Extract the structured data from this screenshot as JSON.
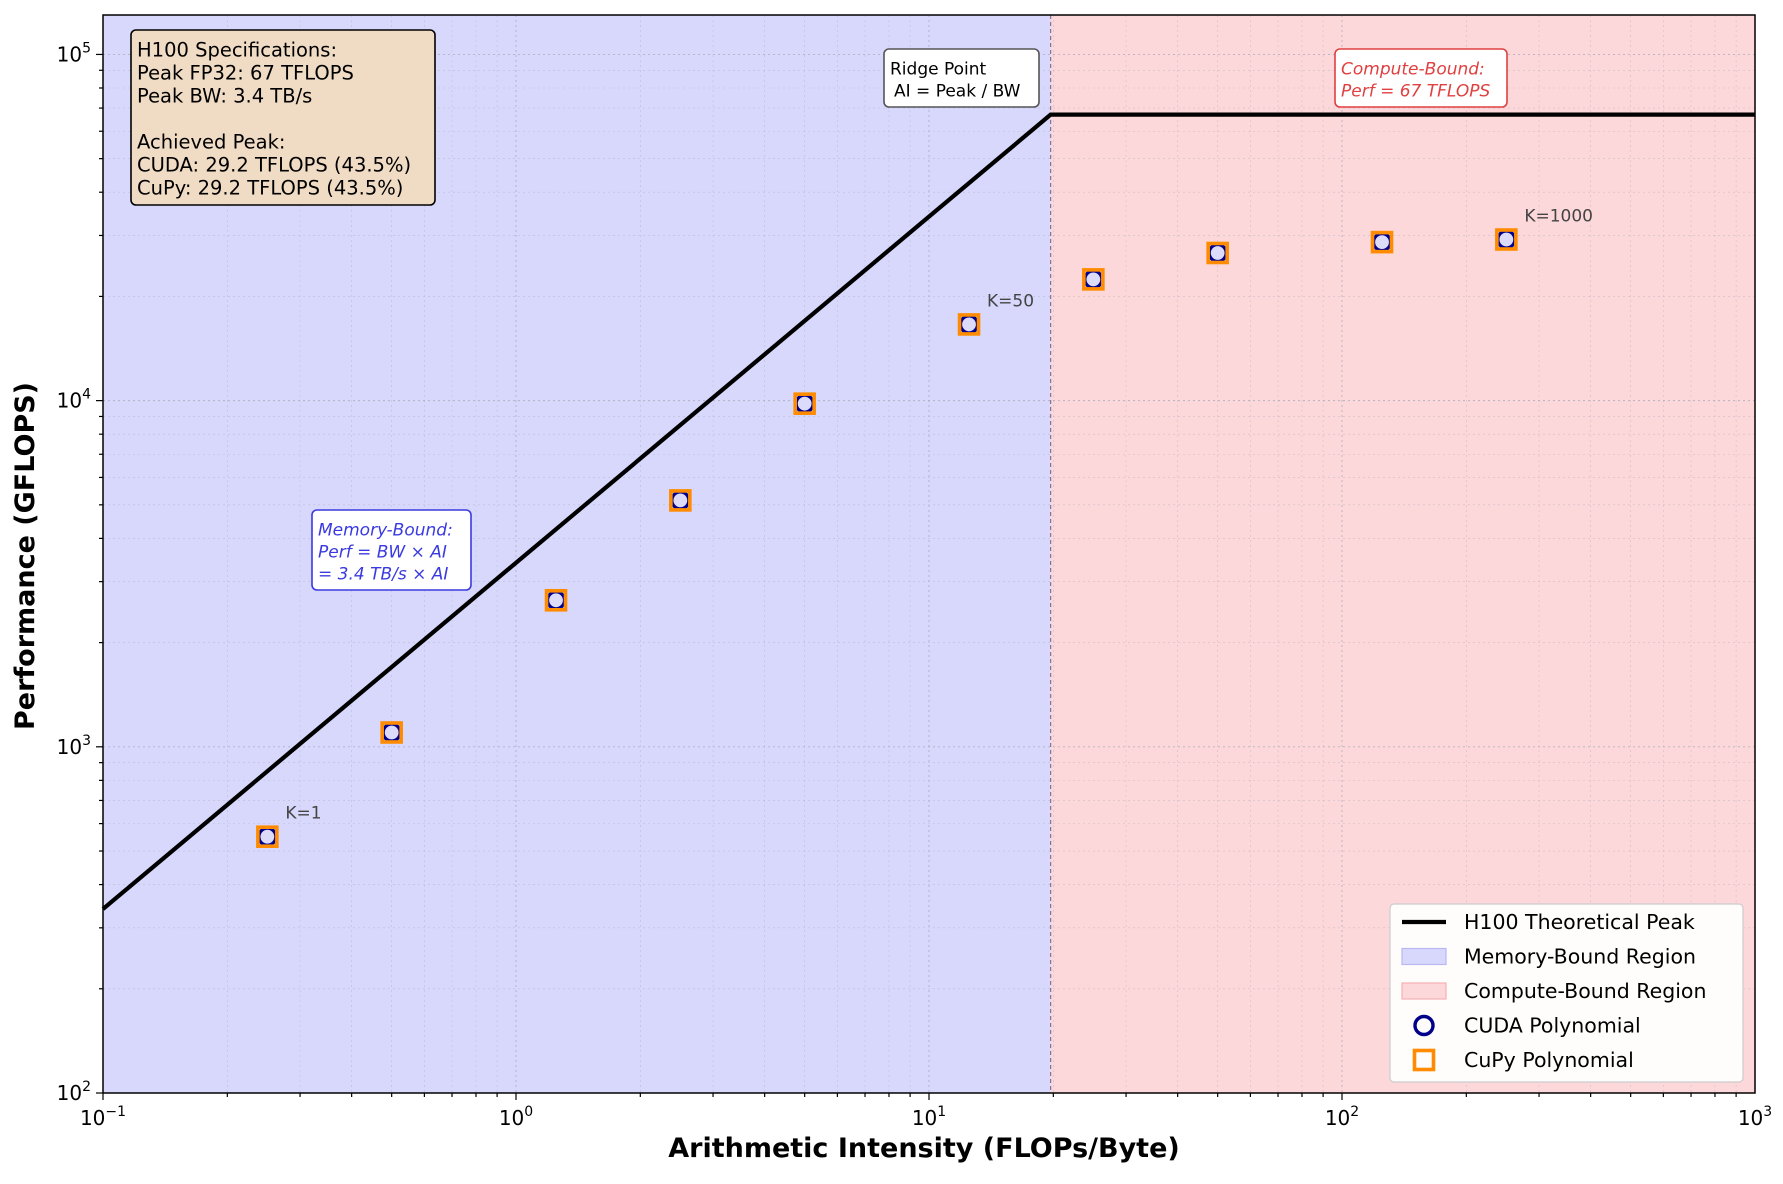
{
  "chart_data": {
    "type": "scatter",
    "xlabel": "Arithmetic Intensity (FLOPs/Byte)",
    "ylabel": "Performance (GFLOPS)",
    "xscale": "log",
    "yscale": "log",
    "xlim": [
      0.1,
      1000
    ],
    "ylim": [
      100,
      130000
    ],
    "x_ticks": [
      {
        "value": 0.1,
        "base": "10",
        "exp": "−1"
      },
      {
        "value": 1,
        "base": "10",
        "exp": "0"
      },
      {
        "value": 10,
        "base": "10",
        "exp": "1"
      },
      {
        "value": 100,
        "base": "10",
        "exp": "2"
      },
      {
        "value": 1000,
        "base": "10",
        "exp": "3"
      }
    ],
    "y_ticks": [
      {
        "value": 100,
        "base": "10",
        "exp": "2"
      },
      {
        "value": 1000,
        "base": "10",
        "exp": "3"
      },
      {
        "value": 10000,
        "base": "10",
        "exp": "4"
      },
      {
        "value": 100000,
        "base": "10",
        "exp": "5"
      }
    ],
    "grid": true,
    "ridge_point_ai": 19.7,
    "peak_gflops": 67000,
    "bandwidth_tb_s": 3.4,
    "regions": [
      {
        "name": "Memory-Bound Region",
        "x_range": [
          0.1,
          19.7
        ],
        "color": "#d8d8fd"
      },
      {
        "name": "Compute-Bound Region",
        "x_range": [
          19.7,
          1000
        ],
        "color": "#fdd8da"
      }
    ],
    "roofline": {
      "name": "H100 Theoretical Peak",
      "color": "#000000",
      "points": [
        [
          0.1,
          340
        ],
        [
          19.7,
          67000
        ],
        [
          1000,
          67000
        ]
      ]
    },
    "series": [
      {
        "name": "CUDA Polynomial",
        "marker": "circle",
        "color": "#00008b",
        "points": [
          [
            0.25,
            550
          ],
          [
            0.5,
            1100
          ],
          [
            1.25,
            2650
          ],
          [
            2.5,
            5150
          ],
          [
            5,
            9800
          ],
          [
            12.5,
            16600
          ],
          [
            25,
            22400
          ],
          [
            50,
            26700
          ],
          [
            125,
            28700
          ],
          [
            250,
            29200
          ]
        ]
      },
      {
        "name": "CuPy Polynomial",
        "marker": "square",
        "color": "#ff8c00",
        "points": [
          [
            0.25,
            550
          ],
          [
            0.5,
            1100
          ],
          [
            1.25,
            2650
          ],
          [
            2.5,
            5150
          ],
          [
            5,
            9800
          ],
          [
            12.5,
            16600
          ],
          [
            25,
            22400
          ],
          [
            50,
            26700
          ],
          [
            125,
            28700
          ],
          [
            250,
            29200
          ]
        ]
      }
    ],
    "point_labels": [
      {
        "text": "K=1",
        "x": 0.25,
        "y": 550
      },
      {
        "text": "K=50",
        "x": 12.5,
        "y": 16600
      },
      {
        "text": "K=1000",
        "x": 250,
        "y": 29200
      }
    ],
    "annotations": {
      "specs": [
        "H100 Specifications:",
        "Peak FP32: 67 TFLOPS",
        "Peak BW: 3.4 TB/s",
        "",
        "Achieved Peak:",
        "CUDA: 29.2 TFLOPS (43.5%)",
        "CuPy: 29.2 TFLOPS (43.5%)"
      ],
      "ridge": [
        "Ridge Point",
        "AI = Peak / BW"
      ],
      "compute_bound": [
        "Compute-Bound:",
        "Perf = 67 TFLOPS"
      ],
      "memory_bound": [
        "Memory-Bound:",
        "Perf = BW × AI",
        "= 3.4 TB/s × AI"
      ]
    },
    "legend": {
      "position": "lower-right",
      "entries": [
        {
          "label": "H100 Theoretical Peak",
          "kind": "line",
          "color": "#000000"
        },
        {
          "label": "Memory-Bound Region",
          "kind": "patch",
          "color": "#d8d8fd",
          "edge": "#b8b8f5"
        },
        {
          "label": "Compute-Bound Region",
          "kind": "patch",
          "color": "#fdd8da",
          "edge": "#f5b0b4"
        },
        {
          "label": "CUDA Polynomial",
          "kind": "circle",
          "color": "#00008b"
        },
        {
          "label": "CuPy Polynomial",
          "kind": "square",
          "color": "#ff8c00"
        }
      ]
    }
  }
}
